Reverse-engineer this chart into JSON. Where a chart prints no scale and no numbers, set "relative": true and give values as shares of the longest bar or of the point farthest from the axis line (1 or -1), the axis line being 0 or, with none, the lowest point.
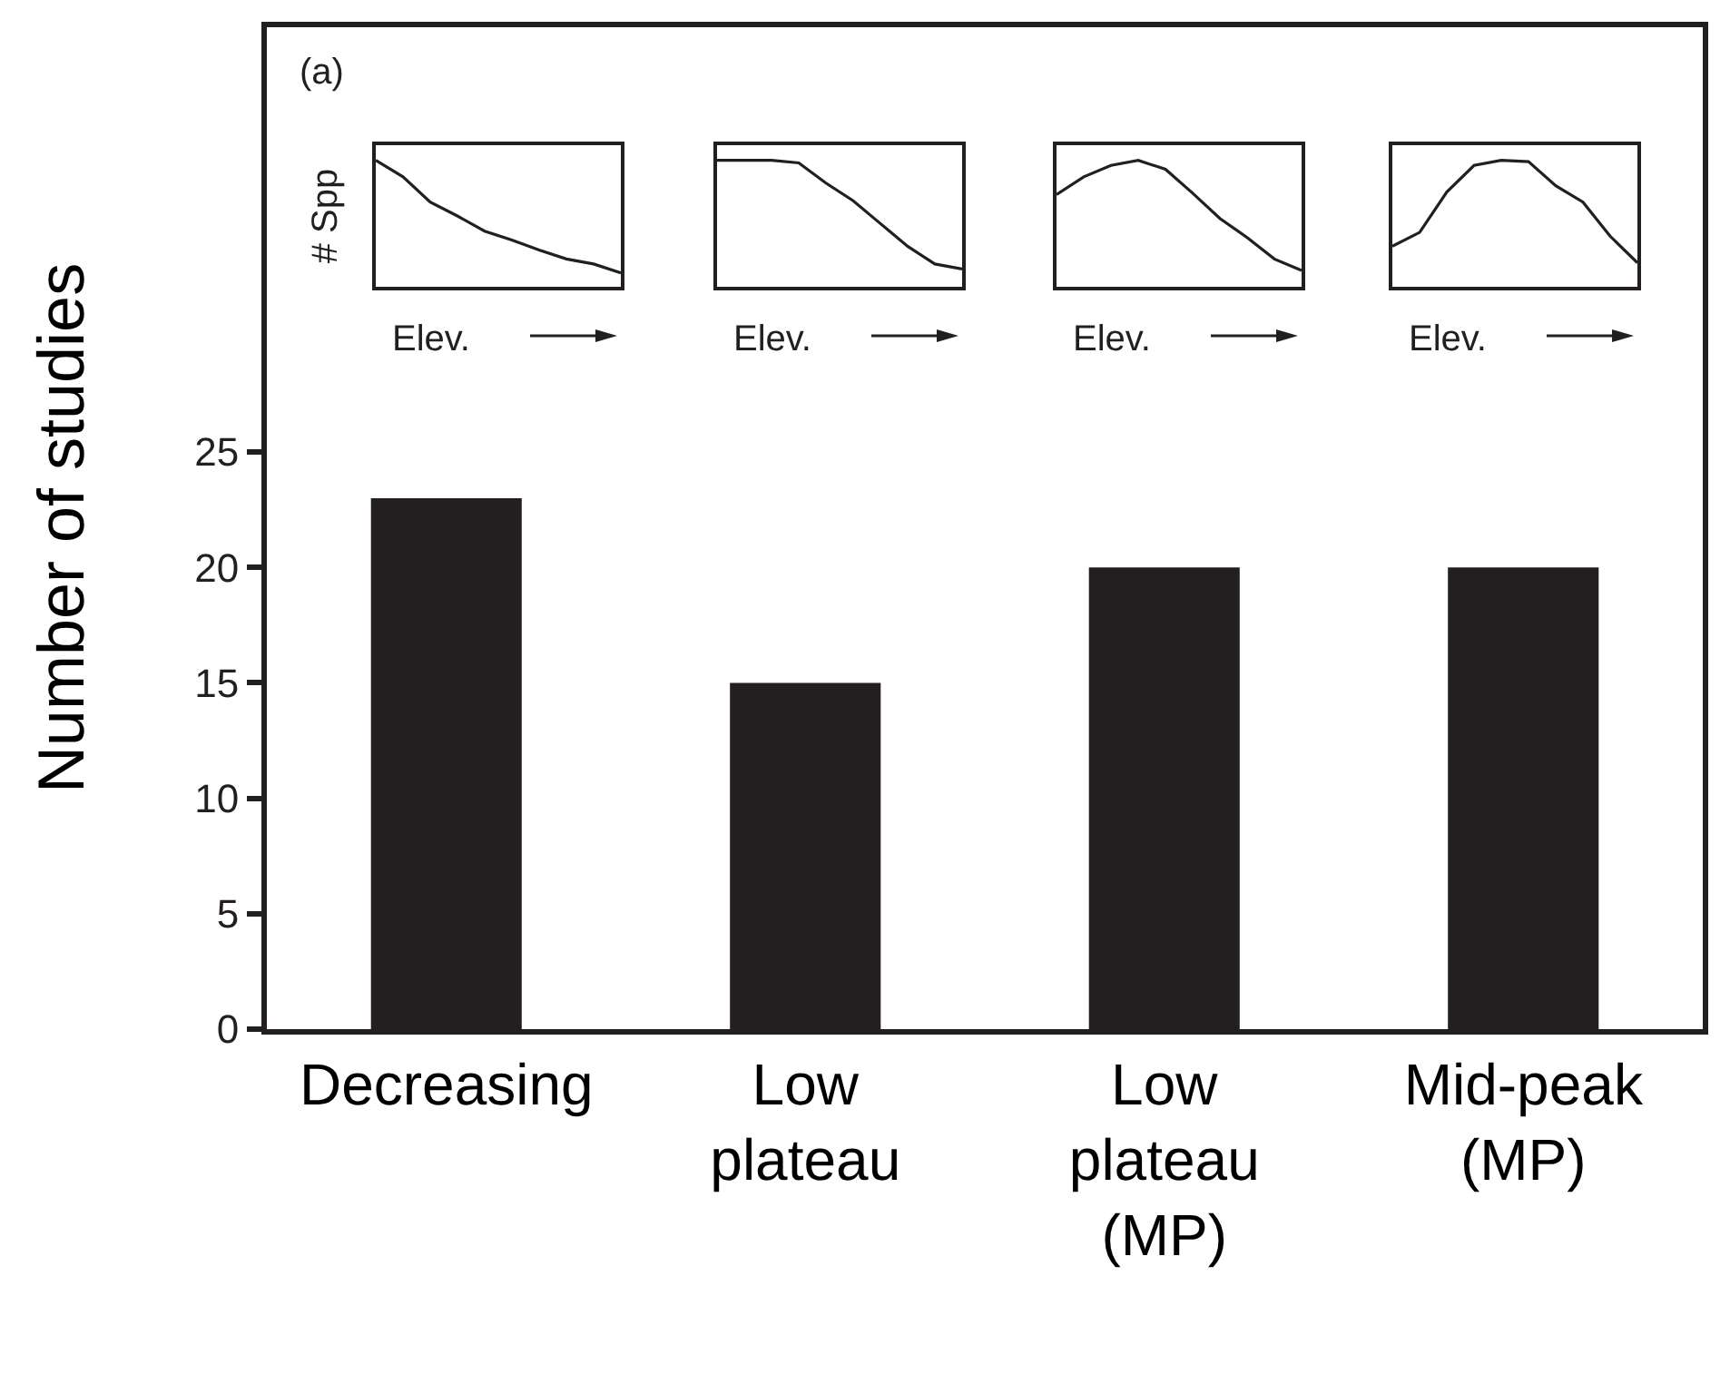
{
  "chart_data": [
    {
      "type": "line",
      "relative": true,
      "categories": [
        null,
        null,
        null,
        null,
        null,
        null,
        null,
        null,
        null,
        null
      ],
      "values": [
        1,
        0.87,
        0.67,
        0.56,
        0.44,
        0.37,
        0.29,
        0.22,
        0.18,
        0.11
      ],
      "color": "#231f20",
      "xlabel": "Elev.",
      "ylabel": "# Spp",
      "tick_labels": false,
      "marker": "none"
    },
    {
      "type": "line",
      "relative": true,
      "categories": [
        null,
        null,
        null,
        null,
        null,
        null,
        null,
        null,
        null,
        null
      ],
      "values": [
        1,
        1,
        1,
        0.98,
        0.82,
        0.68,
        0.5,
        0.32,
        0.18,
        0.14
      ],
      "color": "#231f20",
      "xlabel": "Elev.",
      "tick_labels": false,
      "marker": "none"
    },
    {
      "type": "line",
      "relative": true,
      "categories": [
        null,
        null,
        null,
        null,
        null,
        null,
        null,
        null,
        null,
        null
      ],
      "values": [
        0.73,
        0.87,
        0.96,
        1,
        0.93,
        0.74,
        0.54,
        0.39,
        0.22,
        0.13
      ],
      "color": "#231f20",
      "xlabel": "Elev.",
      "tick_labels": false,
      "marker": "none"
    },
    {
      "type": "line",
      "relative": true,
      "categories": [
        null,
        null,
        null,
        null,
        null,
        null,
        null,
        null,
        null,
        null
      ],
      "values": [
        0.32,
        0.43,
        0.75,
        0.96,
        1,
        0.99,
        0.8,
        0.67,
        0.4,
        0.19
      ],
      "color": "#231f20",
      "xlabel": "Elev.",
      "tick_labels": false,
      "marker": "none"
    },
    {
      "type": "bar",
      "ylabel": "Number of studies",
      "categories": [
        "Decreasing",
        "Low plateau",
        "Low plateau (MP)",
        "Mid-peak (MP)"
      ],
      "values": [
        23,
        15,
        20,
        20
      ],
      "color": "#231f20",
      "ylim": [
        0,
        43.4
      ],
      "yticks": [
        0,
        5,
        10,
        15,
        20,
        25
      ],
      "grid": false,
      "legend": false,
      "annotations": [
        "(a)"
      ]
    }
  ]
}
